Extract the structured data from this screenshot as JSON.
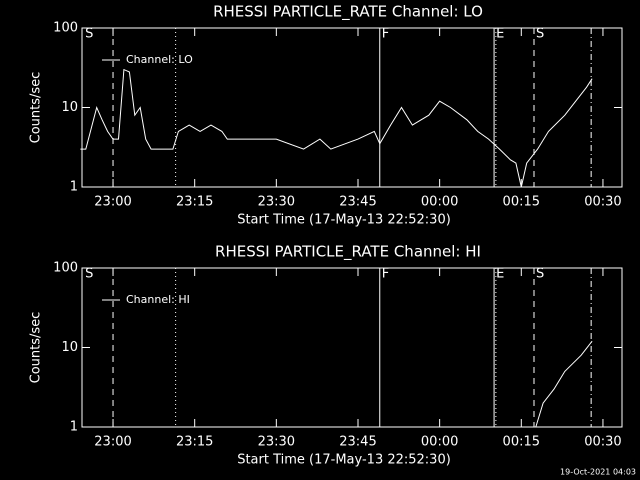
{
  "chart_data": [
    {
      "type": "line",
      "title": "RHESSI PARTICLE_RATE Channel: LO",
      "x_label": "Start Time (17-May-13 22:52:30)",
      "y_label": "Counts/sec",
      "xlim": [
        "22:54:18",
        "00:33:30"
      ],
      "xticks": [
        "23:00",
        "23:15",
        "23:30",
        "23:45",
        "00:00",
        "00:15",
        "00:30"
      ],
      "ylim": [
        1,
        100
      ],
      "yticks": [
        1,
        10,
        100
      ],
      "log_y": true,
      "x": [
        "22:54",
        "22:55",
        "22:57",
        "22:58",
        "22:59",
        "23:00",
        "23:01",
        "23:02",
        "23:03",
        "23:04",
        "23:05",
        "23:06",
        "23:07",
        "23:11",
        "23:12",
        "23:14",
        "23:16",
        "23:18",
        "23:20",
        "23:21",
        "23:30",
        "23:35",
        "23:38",
        "23:40",
        "23:45",
        "23:48",
        "23:49",
        "23:51",
        "23:53",
        "23:55",
        "23:58",
        "00:00",
        "00:02",
        "00:05",
        "00:07",
        "00:09",
        "00:11",
        "00:13",
        "00:14",
        "00:15",
        "00:16",
        "00:18",
        "00:20",
        "00:23",
        "00:25",
        "00:27",
        "00:28"
      ],
      "series": [
        {
          "name": "Channel: LO",
          "color": "#ffffff",
          "values": [
            3,
            3,
            10,
            7,
            5,
            4,
            4,
            30,
            28,
            8,
            10,
            4,
            3,
            3,
            5,
            6,
            5,
            6,
            5,
            4,
            4,
            3,
            4,
            3,
            4,
            5,
            3.5,
            6,
            10,
            6,
            8,
            12,
            10,
            7,
            5,
            4,
            3,
            2.2,
            2,
            1,
            2,
            3,
            5,
            8,
            12,
            18,
            23
          ]
        }
      ],
      "markers": [
        {
          "x": "22:54:30",
          "style": "none",
          "label": "S"
        },
        {
          "x": "23:00",
          "style": "dashed"
        },
        {
          "x": "23:11:30",
          "style": "dotted"
        },
        {
          "x": "23:49",
          "style": "solid",
          "label": "F"
        },
        {
          "x": "00:10",
          "style": "solid",
          "label": "E"
        },
        {
          "x": "00:10:20",
          "style": "dotted"
        },
        {
          "x": "00:17:20",
          "style": "dashed",
          "label": "S"
        },
        {
          "x": "00:27:50",
          "style": "dash-dot"
        }
      ]
    },
    {
      "type": "line",
      "title": "RHESSI PARTICLE_RATE Channel: HI",
      "x_label": "Start Time (17-May-13 22:52:30)",
      "y_label": "Counts/sec",
      "xlim": [
        "22:54:18",
        "00:33:30"
      ],
      "xticks": [
        "23:00",
        "23:15",
        "23:30",
        "23:45",
        "00:00",
        "00:15",
        "00:30"
      ],
      "ylim": [
        1,
        100
      ],
      "yticks": [
        1,
        10,
        100
      ],
      "log_y": true,
      "x": [
        "00:17:40",
        "00:19",
        "00:21",
        "00:23",
        "00:26",
        "00:28"
      ],
      "series": [
        {
          "name": "Channel: HI",
          "color": "#ffffff",
          "values": [
            1,
            2,
            3,
            5,
            8,
            12
          ]
        }
      ],
      "markers": [
        {
          "x": "22:54:30",
          "style": "none",
          "label": "S"
        },
        {
          "x": "23:00",
          "style": "dashed"
        },
        {
          "x": "23:11:30",
          "style": "dotted"
        },
        {
          "x": "23:49",
          "style": "solid",
          "label": "F"
        },
        {
          "x": "00:10",
          "style": "solid",
          "label": "E"
        },
        {
          "x": "00:10:20",
          "style": "dotted"
        },
        {
          "x": "00:17:20",
          "style": "dashed",
          "label": "S"
        },
        {
          "x": "00:27:50",
          "style": "dash-dot"
        }
      ]
    }
  ],
  "footer": "19-Oct-2021 04:03"
}
